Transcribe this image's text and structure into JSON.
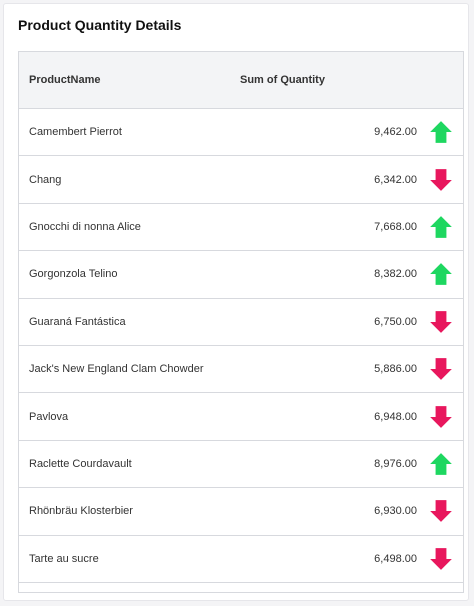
{
  "card": {
    "title": "Product Quantity Details"
  },
  "grid": {
    "columns": {
      "name": "ProductName",
      "quantity": "Sum of Quantity"
    },
    "rows": [
      {
        "name": "Camembert Pierrot",
        "quantity": "9,462.00",
        "trend": "up"
      },
      {
        "name": "Chang",
        "quantity": "6,342.00",
        "trend": "down"
      },
      {
        "name": "Gnocchi di nonna Alice",
        "quantity": "7,668.00",
        "trend": "up"
      },
      {
        "name": "Gorgonzola Telino",
        "quantity": "8,382.00",
        "trend": "up"
      },
      {
        "name": "Guaraná Fantástica",
        "quantity": "6,750.00",
        "trend": "down"
      },
      {
        "name": "Jack's New England Clam Chowder",
        "quantity": "5,886.00",
        "trend": "down"
      },
      {
        "name": "Pavlova",
        "quantity": "6,948.00",
        "trend": "down"
      },
      {
        "name": "Raclette Courdavault",
        "quantity": "8,976.00",
        "trend": "up"
      },
      {
        "name": "Rhönbräu Klosterbier",
        "quantity": "6,930.00",
        "trend": "down"
      },
      {
        "name": "Tarte au sucre",
        "quantity": "6,498.00",
        "trend": "down"
      }
    ]
  },
  "icons": {
    "up": {
      "name": "arrow-up-icon",
      "color": "#1ed760"
    },
    "down": {
      "name": "arrow-down-icon",
      "color": "#e8175d"
    }
  }
}
